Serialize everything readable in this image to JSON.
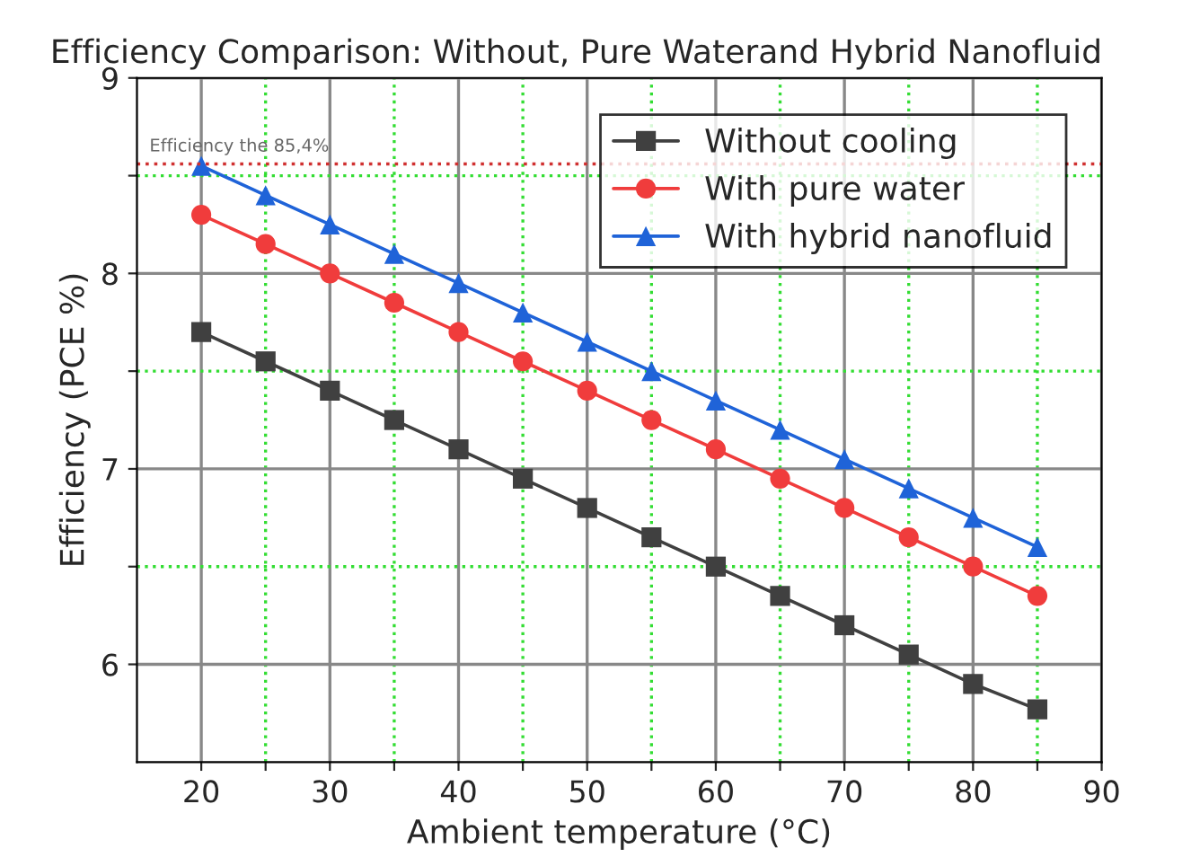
{
  "chart_data": {
    "type": "line",
    "title": "Efficiency Comparison: Without, Pure Waterand Hybrid Nanofluid",
    "xlabel": "Ambient temperature (°C)",
    "ylabel": "Efficiency (PCE %)",
    "x": [
      20,
      25,
      30,
      35,
      40,
      45,
      50,
      55,
      60,
      65,
      70,
      75,
      80,
      85
    ],
    "series": [
      {
        "name": "Without cooling",
        "color": "#404040",
        "marker": "square",
        "values": [
          7.7,
          7.55,
          7.4,
          7.25,
          7.1,
          6.95,
          6.8,
          6.65,
          6.5,
          6.35,
          6.2,
          6.05,
          5.9,
          5.77
        ]
      },
      {
        "name": "With pure water",
        "color": "#f03c3c",
        "marker": "circle",
        "values": [
          8.3,
          8.15,
          8.0,
          7.85,
          7.7,
          7.55,
          7.4,
          7.25,
          7.1,
          6.95,
          6.8,
          6.65,
          6.5,
          6.35
        ]
      },
      {
        "name": "With hybrid nanofluid",
        "color": "#1f63d8",
        "marker": "triangle",
        "values": [
          8.55,
          8.4,
          8.25,
          8.1,
          7.95,
          7.8,
          7.65,
          7.5,
          7.35,
          7.2,
          7.05,
          6.9,
          6.75,
          6.6
        ]
      }
    ],
    "xlim": [
      15,
      90
    ],
    "xticks": [
      20,
      {
        "value": 25,
        "label": null
      },
      30,
      {
        "value": 35,
        "label": null
      },
      40,
      {
        "value": 45,
        "label": null
      },
      50,
      {
        "value": 55,
        "label": null
      },
      60,
      {
        "value": 65,
        "label": null
      },
      70,
      {
        "value": 75,
        "label": null
      },
      80,
      {
        "value": 85,
        "label": null
      },
      90
    ],
    "ylim": [
      5.5,
      9
    ],
    "yticks": [
      6,
      {
        "value": 6.5,
        "label": null
      },
      7,
      {
        "value": 7.5,
        "label": null
      },
      8,
      {
        "value": 8.5,
        "label": null
      },
      9
    ],
    "ref_lines": [
      {
        "axis": "y",
        "value": 8.56,
        "label": "Efficiency the 85,4%",
        "color": "#d03030",
        "line_style": "dotted"
      }
    ],
    "grid": true,
    "legend": "top right",
    "line_style": "solid"
  }
}
